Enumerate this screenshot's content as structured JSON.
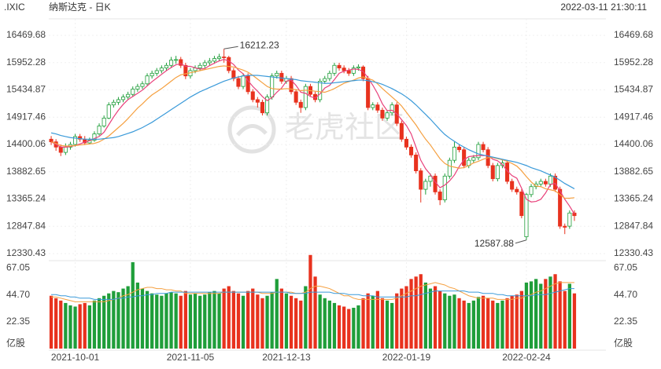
{
  "chart_data": {
    "type": "candlestick",
    "symbol": ".IXIC",
    "title": "纳斯达克 - 日K",
    "timestamp": "2022-03-11 21:30:11",
    "watermark": "老虎社区",
    "up_color": "#1f9e3a",
    "down_color": "#e8321e",
    "grid": true,
    "categories": [
      null,
      null,
      null,
      null,
      null,
      "2021-10-01",
      null,
      null,
      null,
      null,
      null,
      null,
      null,
      null,
      null,
      null,
      null,
      null,
      null,
      null,
      null,
      null,
      null,
      null,
      null,
      null,
      null,
      null,
      null,
      "2021-11-05",
      null,
      null,
      null,
      null,
      null,
      null,
      null,
      null,
      null,
      null,
      null,
      null,
      null,
      null,
      null,
      null,
      null,
      null,
      null,
      "2021-12-13",
      null,
      null,
      null,
      null,
      null,
      null,
      null,
      null,
      null,
      null,
      null,
      null,
      null,
      null,
      null,
      null,
      null,
      null,
      null,
      null,
      null,
      null,
      null,
      null,
      "2022-01-19",
      null,
      null,
      null,
      null,
      null,
      null,
      null,
      null,
      null,
      null,
      null,
      null,
      null,
      null,
      null,
      null,
      null,
      null,
      null,
      null,
      null,
      null,
      null,
      null,
      "2022-02-24",
      null,
      null,
      null,
      null,
      null,
      null,
      null,
      null,
      null,
      null
    ],
    "open": [
      14500,
      14450,
      14350,
      14250,
      14350,
      14400,
      14550,
      14500,
      14430,
      14480,
      14600,
      14750,
      14900,
      15150,
      15200,
      15250,
      15300,
      15350,
      15450,
      15500,
      15550,
      15700,
      15750,
      15800,
      15850,
      15900,
      16000,
      16010,
      15900,
      15700,
      15800,
      15850,
      15900,
      15950,
      15980,
      16030,
      16060,
      16050,
      15800,
      15650,
      15500,
      15700,
      15400,
      15250,
      15200,
      15000,
      15300,
      15700,
      15750,
      15600,
      15650,
      15400,
      15200,
      15100,
      15500,
      15350,
      15250,
      15600,
      15650,
      15750,
      15900,
      15850,
      15800,
      15750,
      15850,
      15870,
      15650,
      15100,
      15150,
      15050,
      14900,
      15000,
      15150,
      14800,
      14500,
      14350,
      14200,
      13900,
      13550,
      13700,
      13800,
      13500,
      13350,
      13800,
      14100,
      14350,
      14300,
      14000,
      14100,
      14150,
      14400,
      14300,
      14000,
      13750,
      14000,
      14050,
      13700,
      13550,
      13500,
      12650,
      13450,
      13600,
      13650,
      13700,
      13650,
      13800,
      13550,
      12850,
      12850,
      13100
    ],
    "high": [
      14560,
      14500,
      14400,
      14420,
      14450,
      14600,
      14600,
      14560,
      14530,
      14650,
      14800,
      14950,
      15200,
      15250,
      15300,
      15350,
      15400,
      15500,
      15550,
      15600,
      15750,
      15800,
      15850,
      15900,
      15950,
      16060,
      16080,
      16060,
      15950,
      15850,
      15900,
      15950,
      16000,
      16040,
      16080,
      16120,
      16212.23,
      16080,
      15850,
      15700,
      15750,
      15750,
      15450,
      15300,
      15250,
      15350,
      15750,
      15800,
      15800,
      15700,
      15700,
      15450,
      15250,
      15550,
      15550,
      15400,
      15650,
      15700,
      15800,
      15950,
      15950,
      15900,
      15850,
      15900,
      15920,
      15900,
      15700,
      15200,
      15200,
      15100,
      15050,
      15200,
      15200,
      14850,
      14550,
      14400,
      14250,
      13950,
      13750,
      13850,
      13850,
      13550,
      13850,
      14150,
      14450,
      14400,
      14350,
      14150,
      14200,
      14450,
      14450,
      14350,
      14050,
      14050,
      14100,
      14100,
      13750,
      13600,
      13550,
      13480,
      13650,
      13700,
      13750,
      13750,
      13850,
      13850,
      13600,
      12900,
      13150,
      13150
    ],
    "low": [
      14390,
      14280,
      14180,
      14200,
      14300,
      14360,
      14450,
      14390,
      14400,
      14450,
      14570,
      14720,
      14880,
      15100,
      15150,
      15200,
      15250,
      15300,
      15400,
      15450,
      15520,
      15650,
      15700,
      15750,
      15800,
      15850,
      15930,
      15850,
      15640,
      15650,
      15750,
      15800,
      15850,
      15900,
      15930,
      15980,
      15950,
      15750,
      15600,
      15450,
      15450,
      15350,
      15200,
      15100,
      14950,
      14950,
      15250,
      15650,
      15550,
      15550,
      15350,
      15150,
      15000,
      15050,
      15300,
      15200,
      15200,
      15550,
      15600,
      15700,
      15800,
      15750,
      15700,
      15700,
      15800,
      15600,
      15050,
      15050,
      15000,
      14850,
      14850,
      14950,
      14750,
      14450,
      14300,
      14150,
      13850,
      13300,
      13450,
      13600,
      13450,
      13250,
      13300,
      13750,
      14050,
      14250,
      13950,
      13950,
      14050,
      14100,
      14250,
      13950,
      13700,
      13700,
      13950,
      13650,
      13500,
      13450,
      13000,
      12587.88,
      13400,
      13550,
      13600,
      13600,
      13600,
      13500,
      12800,
      12700,
      12800,
      12950
    ],
    "close": [
      14450,
      14350,
      14250,
      14350,
      14400,
      14550,
      14500,
      14430,
      14480,
      14600,
      14750,
      14900,
      15150,
      15200,
      15250,
      15300,
      15350,
      15450,
      15500,
      15550,
      15700,
      15750,
      15800,
      15850,
      15900,
      16000,
      16010,
      15900,
      15700,
      15800,
      15850,
      15900,
      15950,
      15980,
      16030,
      16060,
      16050,
      15800,
      15650,
      15500,
      15700,
      15400,
      15250,
      15200,
      15000,
      15300,
      15700,
      15750,
      15600,
      15650,
      15400,
      15200,
      15100,
      15500,
      15350,
      15250,
      15600,
      15650,
      15750,
      15900,
      15850,
      15800,
      15750,
      15850,
      15870,
      15650,
      15100,
      15150,
      15050,
      14900,
      15000,
      15150,
      14800,
      14500,
      14350,
      14200,
      13900,
      13550,
      13700,
      13800,
      13500,
      13350,
      13800,
      14100,
      14350,
      14300,
      14000,
      14100,
      14150,
      14400,
      14300,
      14000,
      13750,
      14000,
      14050,
      13700,
      13550,
      13500,
      13050,
      13450,
      13600,
      13650,
      13700,
      13650,
      13800,
      13550,
      12850,
      12830,
      13100,
      13050
    ],
    "price_series": [
      {
        "color": "#e8407a",
        "values": [
          14450,
          14400,
          14350,
          14350,
          14360,
          14380,
          14410,
          14446,
          14472,
          14512,
          14552,
          14632,
          14776,
          14920,
          15050,
          15160,
          15250,
          15310,
          15370,
          15430,
          15510,
          15590,
          15660,
          15730,
          15800,
          15860,
          15912,
          15932,
          15882,
          15882,
          15852,
          15830,
          15840,
          15896,
          15942,
          15984,
          16014,
          15984,
          15918,
          15812,
          15740,
          15610,
          15500,
          15410,
          15310,
          15230,
          15290,
          15390,
          15470,
          15600,
          15620,
          15520,
          15390,
          15370,
          15310,
          15280,
          15360,
          15470,
          15520,
          15630,
          15750,
          15790,
          15810,
          15830,
          15824,
          15784,
          15664,
          15524,
          15364,
          15170,
          15040,
          15050,
          14980,
          14870,
          14760,
          14600,
          14350,
          14100,
          13940,
          13830,
          13690,
          13580,
          13630,
          13710,
          13820,
          13980,
          14110,
          14170,
          14180,
          14190,
          14190,
          14190,
          14120,
          14090,
          14020,
          13900,
          13810,
          13760,
          13570,
          13360,
          13310,
          13320,
          13360,
          13480,
          13640,
          13660,
          13520,
          13360,
          13230,
          13080
        ]
      },
      {
        "color": "#f5a040",
        "values": [
          14450,
          14420,
          14380,
          14370,
          14370,
          14380,
          14390,
          14400,
          14410,
          14420,
          14450,
          14500,
          14560,
          14640,
          14720,
          14800,
          14890,
          14990,
          15090,
          15170,
          15260,
          15340,
          15400,
          15460,
          15530,
          15600,
          15670,
          15720,
          15740,
          15760,
          15780,
          15800,
          15820,
          15840,
          15860,
          15880,
          15890,
          15880,
          15870,
          15840,
          15810,
          15770,
          15710,
          15640,
          15570,
          15500,
          15460,
          15450,
          15450,
          15460,
          15450,
          15440,
          15420,
          15430,
          15420,
          15410,
          15400,
          15390,
          15420,
          15460,
          15510,
          15560,
          15590,
          15620,
          15660,
          15680,
          15650,
          15620,
          15550,
          15460,
          15380,
          15300,
          15220,
          15130,
          15010,
          14890,
          14770,
          14630,
          14500,
          14390,
          14260,
          14130,
          14040,
          13990,
          13970,
          13950,
          13960,
          14000,
          14050,
          14080,
          14120,
          14150,
          14150,
          14130,
          14110,
          14080,
          14040,
          13990,
          13900,
          13790,
          13690,
          13610,
          13600,
          13560,
          13540,
          13520,
          13450,
          13380,
          13380,
          13390
        ]
      },
      {
        "color": "#3a9ad9",
        "values": [
          14620,
          14600,
          14570,
          14550,
          14530,
          14520,
          14510,
          14500,
          14500,
          14500,
          14500,
          14510,
          14520,
          14530,
          14550,
          14580,
          14610,
          14640,
          14680,
          14720,
          14770,
          14820,
          14880,
          14940,
          15000,
          15060,
          15120,
          15180,
          15240,
          15300,
          15350,
          15400,
          15440,
          15480,
          15520,
          15560,
          15600,
          15630,
          15660,
          15680,
          15700,
          15710,
          15710,
          15710,
          15700,
          15690,
          15680,
          15670,
          15660,
          15650,
          15640,
          15630,
          15610,
          15600,
          15590,
          15580,
          15570,
          15560,
          15560,
          15570,
          15580,
          15590,
          15600,
          15610,
          15620,
          15620,
          15610,
          15590,
          15570,
          15540,
          15500,
          15460,
          15410,
          15360,
          15300,
          15230,
          15150,
          15060,
          14970,
          14880,
          14780,
          14680,
          14590,
          14520,
          14460,
          14400,
          14350,
          14300,
          14260,
          14220,
          14200,
          14180,
          14160,
          14140,
          14120,
          14100,
          14080,
          14060,
          14030,
          14000,
          13960,
          13930,
          13900,
          13860,
          13820,
          13780,
          13720,
          13660,
          13610,
          13560
        ]
      }
    ],
    "ylim": [
      12330.43,
      16469.68
    ],
    "yticks": [
      12330.43,
      12847.84,
      13365.24,
      13882.65,
      14400.06,
      14917.46,
      15434.87,
      15952.28,
      16469.68
    ],
    "volume": [
      44,
      42,
      40,
      38,
      36,
      35,
      37,
      38,
      36,
      40,
      42,
      44,
      46,
      48,
      47,
      50,
      52,
      72,
      55,
      50,
      48,
      46,
      45,
      44,
      46,
      47,
      46,
      44,
      48,
      45,
      46,
      44,
      45,
      47,
      48,
      46,
      50,
      52,
      48,
      46,
      44,
      48,
      50,
      45,
      42,
      44,
      47,
      58,
      50,
      46,
      44,
      42,
      40,
      52,
      78,
      60,
      45,
      42,
      40,
      38,
      36,
      35,
      33,
      34,
      36,
      42,
      46,
      44,
      48,
      42,
      40,
      38,
      46,
      50,
      52,
      58,
      60,
      62,
      55,
      50,
      52,
      48,
      46,
      44,
      45,
      42,
      40,
      38,
      40,
      43,
      44,
      42,
      40,
      38,
      40,
      42,
      44,
      45,
      48,
      55,
      56,
      58,
      54,
      58,
      60,
      62,
      56,
      48,
      54,
      46
    ],
    "volume_series": [
      {
        "color": "#f5a040",
        "values": [
          43,
          43,
          42,
          41,
          40,
          39,
          39,
          39,
          39,
          39,
          39,
          39,
          40,
          41,
          42,
          44,
          45,
          47,
          49,
          50,
          51,
          51,
          50,
          50,
          49,
          49,
          48,
          48,
          46,
          46,
          46,
          46,
          46,
          46,
          46,
          46,
          47,
          47,
          47,
          47,
          47,
          47,
          47,
          47,
          46,
          46,
          46,
          47,
          47,
          47,
          47,
          46,
          46,
          47,
          50,
          52,
          52,
          51,
          50,
          48,
          46,
          44,
          44,
          42,
          41,
          41,
          41,
          41,
          41,
          41,
          41,
          41,
          42,
          44,
          46,
          48,
          50,
          52,
          53,
          54,
          55,
          54,
          53,
          51,
          50,
          48,
          46,
          44,
          43,
          42,
          42,
          42,
          42,
          41,
          41,
          41,
          41,
          42,
          42,
          44,
          45,
          47,
          48,
          50,
          52,
          54,
          55,
          55,
          55,
          55
        ]
      },
      {
        "color": "#3a9ad9",
        "values": [
          45,
          45,
          44,
          44,
          43,
          43,
          42,
          42,
          42,
          41,
          41,
          41,
          41,
          41,
          42,
          42,
          43,
          43,
          44,
          44,
          45,
          45,
          46,
          46,
          46,
          47,
          47,
          47,
          47,
          47,
          47,
          47,
          47,
          47,
          47,
          47,
          47,
          47,
          47,
          47,
          47,
          47,
          47,
          47,
          47,
          47,
          47,
          47,
          47,
          47,
          46,
          46,
          46,
          46,
          47,
          47,
          47,
          47,
          47,
          46,
          46,
          46,
          45,
          45,
          45,
          44,
          44,
          44,
          43,
          43,
          43,
          43,
          43,
          43,
          43,
          44,
          44,
          45,
          46,
          47,
          48,
          48,
          48,
          48,
          48,
          48,
          48,
          47,
          47,
          47,
          46,
          46,
          46,
          45,
          45,
          44,
          44,
          44,
          44,
          44,
          44,
          45,
          45,
          45,
          46,
          47,
          48,
          49,
          50,
          50
        ]
      }
    ],
    "vlim": [
      0,
      70
    ],
    "vticks": [
      {
        "value": 0,
        "label": "亿股"
      },
      22.35,
      {
        "value": 44.7,
        "label": "44.70"
      },
      67.05
    ]
  }
}
